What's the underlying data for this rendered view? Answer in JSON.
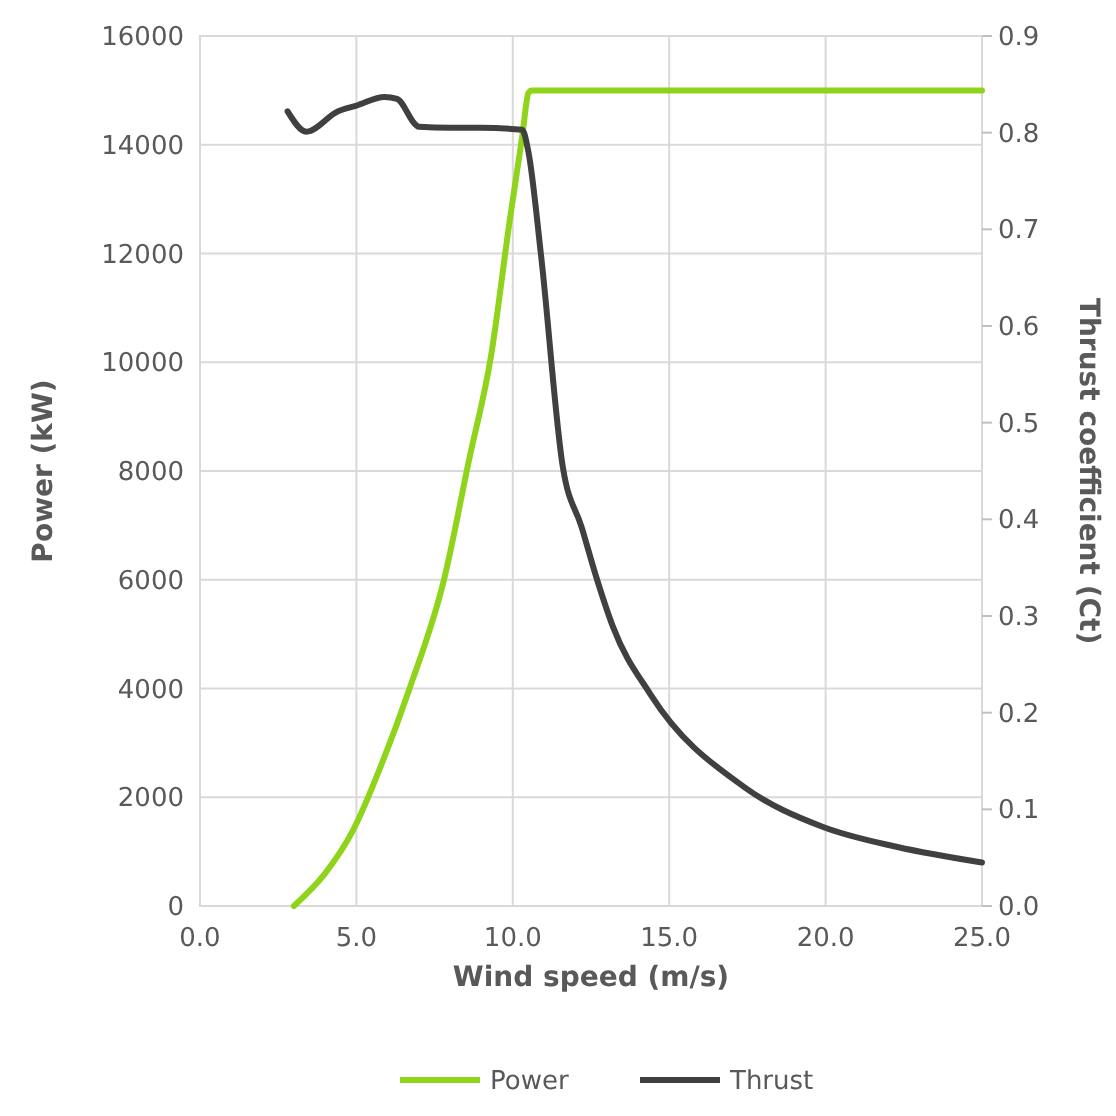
{
  "chart_data": {
    "type": "line",
    "xlabel": "Wind speed (m/s)",
    "ylabel": "Power (kW)",
    "y2label": "Thrust coefficient (Ct)",
    "xlim": [
      0,
      25
    ],
    "xticks": [
      {
        "value": 0,
        "label": "0.0"
      },
      {
        "value": 5,
        "label": "5.0"
      },
      {
        "value": 10,
        "label": "10.0"
      },
      {
        "value": 15,
        "label": "15.0"
      },
      {
        "value": 20,
        "label": "20.0"
      },
      {
        "value": 25,
        "label": "25.0"
      }
    ],
    "ylim": [
      0,
      16000
    ],
    "yticks": [
      0,
      2000,
      4000,
      6000,
      8000,
      10000,
      12000,
      14000,
      16000
    ],
    "y2lim": [
      0,
      0.9
    ],
    "y2ticks": [
      {
        "value": 0,
        "label": "0.0"
      },
      0.1,
      0.2,
      0.3,
      0.4,
      0.5,
      0.6,
      0.7,
      0.8,
      0.9
    ],
    "grid": true,
    "legend": "bottom",
    "marker": "none",
    "line_style": "solid",
    "series": [
      {
        "name": "Power",
        "color": "#8fd31a",
        "x": [
          3.0,
          4.0,
          4.9,
          5.8,
          6.7,
          7.8,
          8.6,
          9.3,
          9.9,
          10.3,
          10.5,
          10.6,
          12,
          15,
          20,
          25
        ],
        "values": [
          0,
          600,
          1400,
          2600,
          4000,
          6000,
          8200,
          10100,
          12600,
          14150,
          14950,
          15000,
          15000,
          15000,
          15000,
          15000
        ]
      },
      {
        "name": "Thrust",
        "color": "#404040",
        "axis": "y2",
        "x": [
          2.8,
          3.4,
          4.4,
          5.0,
          5.9,
          6.3,
          6.9,
          7.0,
          8.0,
          9.0,
          10.3,
          10.5,
          10.9,
          11.6,
          12.2,
          12.7,
          13.2,
          14.4,
          17.4,
          19.9,
          22.3,
          25
        ],
        "values": [
          0.822,
          0.801,
          0.822,
          0.828,
          0.837,
          0.835,
          0.808,
          0.806,
          0.805,
          0.805,
          0.803,
          0.78,
          0.674,
          0.454,
          0.392,
          0.337,
          0.289,
          0.219,
          0.123,
          0.082,
          0.061,
          0.045
        ]
      }
    ]
  }
}
